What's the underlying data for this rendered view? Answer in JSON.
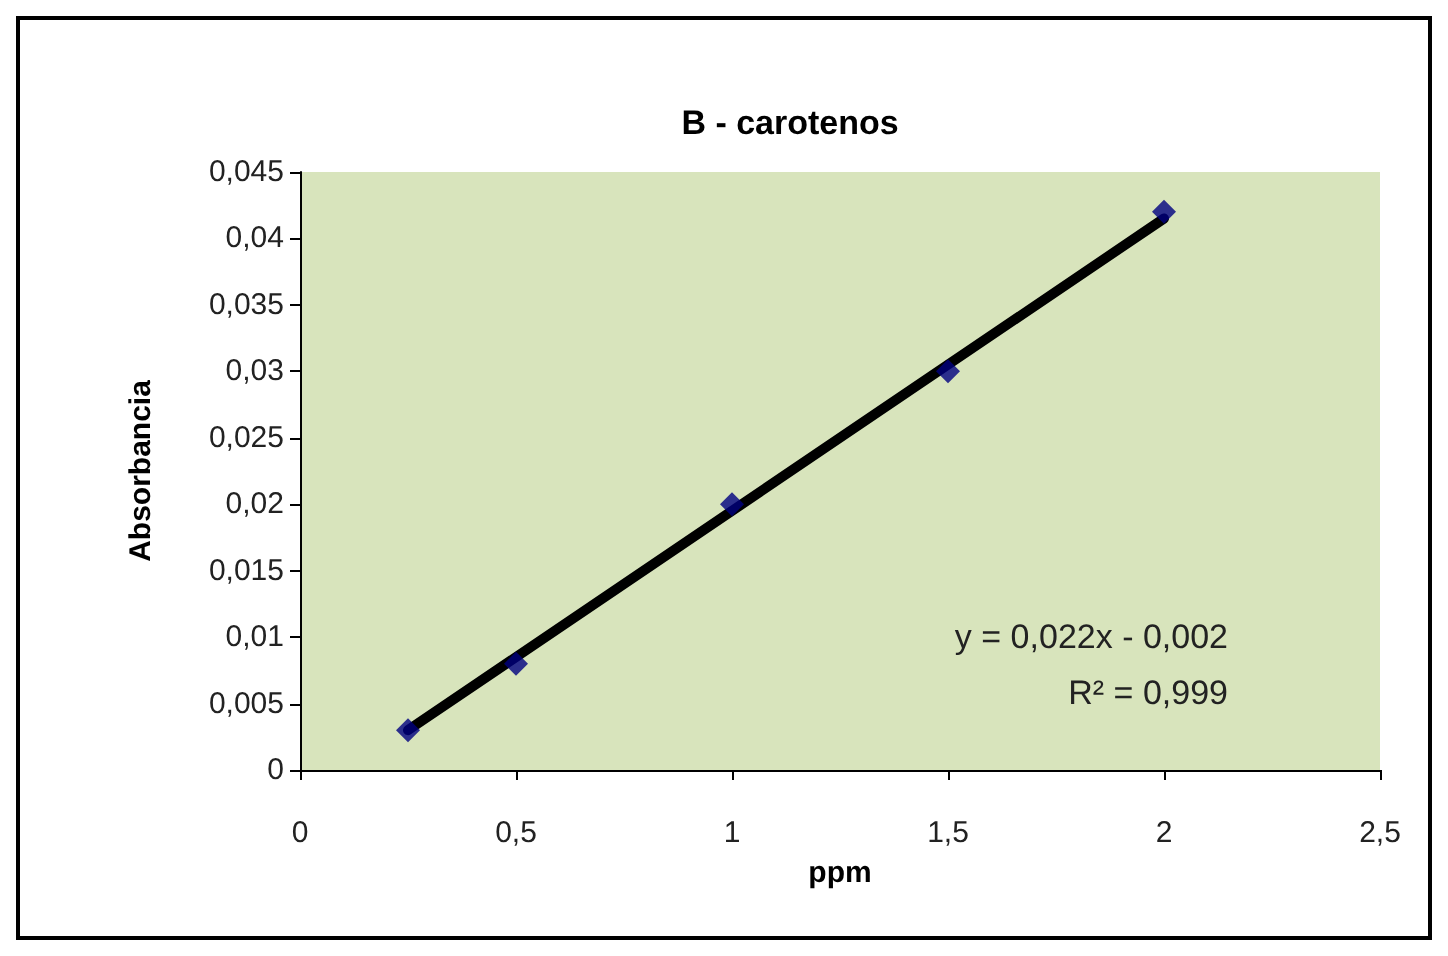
{
  "chart_data": {
    "type": "scatter",
    "title": "B - carotenos",
    "xlabel": "ppm",
    "ylabel": "Absorbancia",
    "x": [
      0.25,
      0.5,
      1,
      1.5,
      2
    ],
    "series": [
      {
        "color": "#000080",
        "values": [
          0.003,
          0.008,
          0.02,
          0.03,
          0.042
        ],
        "marker": "diamond"
      },
      {
        "type": "line",
        "color": "#000000",
        "x": [
          0.25,
          2
        ],
        "values": [
          0.003,
          0.0415
        ],
        "marker": "none",
        "line_style": "solid"
      }
    ],
    "xlim": [
      0,
      2.5
    ],
    "xticks": [
      0,
      {
        "value": 0.5,
        "label": "0,5"
      },
      1,
      {
        "value": 1.5,
        "label": "1,5"
      },
      2,
      {
        "value": 2.5,
        "label": "2,5"
      }
    ],
    "ylim": [
      0,
      0.045
    ],
    "yticks": [
      0,
      {
        "value": 0.005,
        "label": "0,005"
      },
      {
        "value": 0.01,
        "label": "0,01"
      },
      {
        "value": 0.015,
        "label": "0,015"
      },
      {
        "value": 0.02,
        "label": "0,02"
      },
      {
        "value": 0.025,
        "label": "0,025"
      },
      {
        "value": 0.03,
        "label": "0,03"
      },
      {
        "value": 0.035,
        "label": "0,035"
      },
      {
        "value": 0.04,
        "label": "0,04"
      },
      {
        "value": 0.045,
        "label": "0,045"
      }
    ],
    "grid": false,
    "annotations": [
      "y = 0,022x - 0,002",
      "R² = 0,999"
    ]
  }
}
